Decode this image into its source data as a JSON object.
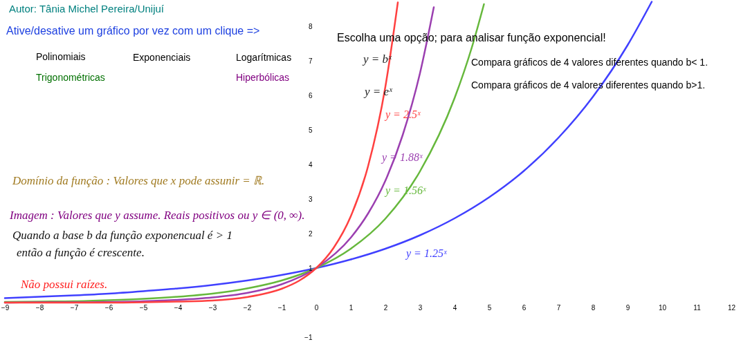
{
  "chart_data": {
    "type": "line",
    "title": "Autor: Tânia Michel Pereira/Unijuí",
    "subtitle": "Ative/desative um gráfico por vez com um clique =>",
    "xlim": [
      -9.14,
      12.54
    ],
    "ylim": [
      -1.14,
      8.76
    ],
    "xticks": [
      -9,
      -8,
      -7,
      -6,
      -5,
      -4,
      -3,
      -2,
      -1,
      0,
      1,
      2,
      3,
      4,
      5,
      6,
      7,
      8,
      9,
      10,
      11,
      12
    ],
    "yticks": [
      -1,
      1,
      2,
      3,
      4,
      5,
      6,
      7,
      8
    ],
    "grid": false,
    "marker": "none",
    "line_style": "solid",
    "series": [
      {
        "name": "y = 2.5ˣ",
        "color": "#ff4040",
        "x": [
          -9,
          -8,
          -7,
          -6,
          -5,
          -4,
          -3,
          -2,
          -1,
          -0.5,
          0,
          0.5,
          1,
          1.5,
          2,
          2.36
        ],
        "values": [
          0.0,
          0.0,
          0.0,
          0.0,
          0.01,
          0.03,
          0.06,
          0.16,
          0.4,
          0.63,
          1,
          1.58,
          2.5,
          3.95,
          6.25,
          8.69
        ]
      },
      {
        "name": "y = 1.88ˣ",
        "color": "#9b3fb0",
        "x": [
          -9,
          -8,
          -7,
          -6,
          -5,
          -4,
          -3,
          -2,
          -1,
          0,
          1,
          1.5,
          2,
          2.5,
          3,
          3.4
        ],
        "values": [
          0.0,
          0.01,
          0.01,
          0.02,
          0.04,
          0.08,
          0.15,
          0.28,
          0.53,
          1,
          1.88,
          2.58,
          3.53,
          4.85,
          6.64,
          8.55
        ]
      },
      {
        "name": "y = 1.56ˣ",
        "color": "#66b83c",
        "x": [
          -9,
          -8,
          -7,
          -6,
          -5,
          -4,
          -3,
          -2,
          -1,
          0,
          1,
          2,
          3,
          4,
          4.5,
          4.85
        ],
        "values": [
          0.02,
          0.03,
          0.04,
          0.07,
          0.11,
          0.17,
          0.26,
          0.41,
          0.64,
          1,
          1.56,
          2.43,
          3.8,
          5.92,
          7.39,
          8.64
        ]
      },
      {
        "name": "y = 1.25ˣ",
        "color": "#4040ff",
        "x": [
          -9,
          -8,
          -7,
          -6,
          -5,
          -4,
          -3,
          -2,
          -1,
          0,
          1,
          2,
          3,
          4,
          5,
          6,
          7,
          8,
          9,
          9.7
        ],
        "values": [
          0.13,
          0.17,
          0.21,
          0.26,
          0.33,
          0.41,
          0.51,
          0.64,
          0.8,
          1,
          1.25,
          1.56,
          1.95,
          2.44,
          3.05,
          3.81,
          4.77,
          5.96,
          7.45,
          8.71
        ]
      }
    ],
    "annotations": [
      "Polinomiais",
      "Exponenciais",
      "Logarítmicas",
      "Trigonométricas",
      "Hiperbólicas",
      "Escolha uma opção; para analisar função exponencial!",
      "y = bˣ",
      "y = eˣ",
      "Compara  gráficos de 4 valores diferentes quando b< 1.",
      "Compara  gráficos de 4 valores diferentes quando b>1.",
      "Domínio da função : Valores que x pode assunir = ℝ.",
      "Imagem :  Valores que y assume. Reais positivos ou y ∈ (0, ∞).",
      "Quando a base b da função exponencual é > 1",
      "então a função é crescente.",
      "Não possui raízes."
    ]
  }
}
